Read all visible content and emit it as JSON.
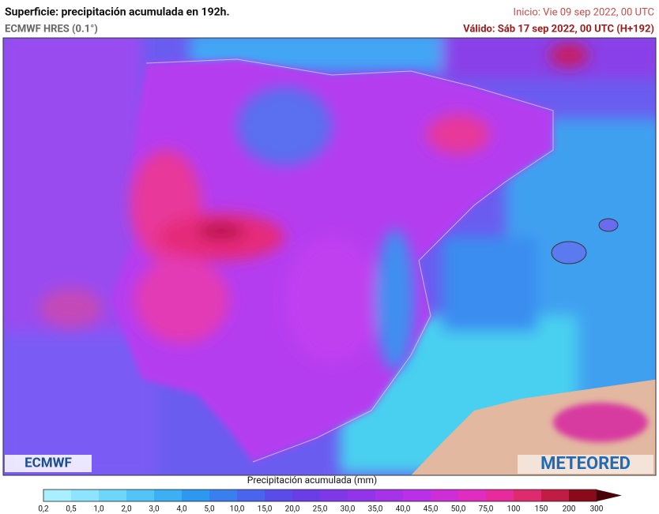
{
  "header": {
    "title": "Superficie: precipitación acumulada en 192h.",
    "model": "ECMWF HRES (0.1°)",
    "init": "Inicio: Vie 09 sep 2022, 00 UTC",
    "valid": "Válido: Sáb 17 sep 2022, 00 UTC (H+192)"
  },
  "map": {
    "logos": [
      "ECMWF",
      "METEORED"
    ]
  },
  "legend": {
    "title": "Precipitación acumulada (mm)",
    "labels": [
      "0,2",
      "0,5",
      "1,0",
      "2,0",
      "3,0",
      "4,0",
      "5,0",
      "10,0",
      "15,0",
      "20,0",
      "25,0",
      "30,0",
      "35,0",
      "40,0",
      "45,0",
      "50,0",
      "75,0",
      "100",
      "150",
      "200",
      "300"
    ]
  }
}
